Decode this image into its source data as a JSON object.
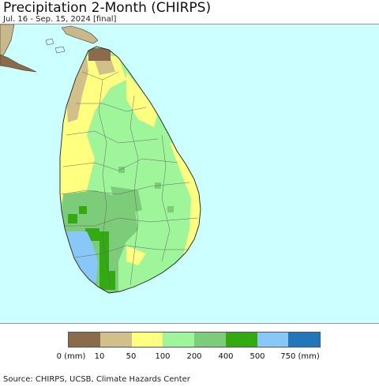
{
  "title": "Precipitation 2-Month (CHIRPS)",
  "subtitle": "Jul. 16 - Sep. 15, 2024 [final]",
  "legend": {
    "colors": [
      "#8b6b4a",
      "#d2c08a",
      "#ffff80",
      "#9ff59a",
      "#7dcc7a",
      "#33aa11",
      "#88c8f8",
      "#2277bb"
    ],
    "labels": [
      "0 (mm)",
      "10",
      "50",
      "100",
      "200",
      "400",
      "500",
      "750 (mm)"
    ]
  },
  "source": "Source: CHIRPS, UCSB, Climate Hazards Center",
  "map": {
    "ocean_color": "#ccffff",
    "land_outside_color": "#c9b98a"
  }
}
